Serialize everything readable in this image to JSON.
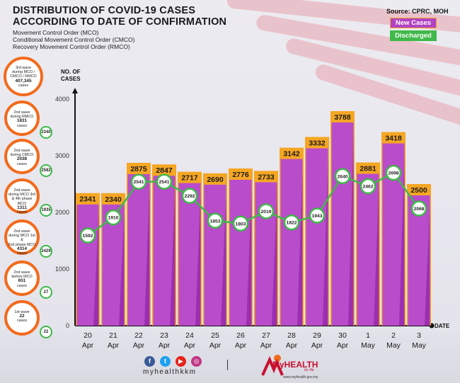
{
  "header": {
    "title": "DISTRIBUTION OF COVID-19 CASES ACCORDING TO DATE OF CONFIRMATION",
    "subtitle_lines": [
      "Movement Control Order (MCO)",
      "Conditional Movement Control Order (CMCO)",
      "Recovery Movement Control Order (RMCO)"
    ],
    "source": "Source: CPRC, MOH"
  },
  "legend": {
    "new_cases": "New Cases",
    "discharged": "Discharged",
    "new_color": "#b143c3",
    "discharged_color": "#3fb94a",
    "accent_color": "#f5a623"
  },
  "waves": [
    {
      "top": "3rd wave",
      "lines": [
        "during MCO /",
        "CMCO / RMCO"
      ],
      "count": "407,345",
      "suffix": "cases",
      "badge": ""
    },
    {
      "top": "2nd wave",
      "lines": [
        "during RMCO"
      ],
      "count": "1831",
      "suffix": "cases",
      "badge": "2340"
    },
    {
      "top": "2nd wave",
      "lines": [
        "during CMCO"
      ],
      "count": "2038",
      "suffix": "cases",
      "badge": "2582"
    },
    {
      "top": "2nd wave",
      "lines": [
        "during MCO 3rd",
        "& 4th phase MCO"
      ],
      "count": "1311",
      "suffix": "cases",
      "badge": "1935"
    },
    {
      "top": "2nd wave",
      "lines": [
        "during MCO 1st &",
        "2nd phase MCO"
      ],
      "count": "4314",
      "suffix": "cases",
      "badge": "2429"
    },
    {
      "top": "2nd wave",
      "lines": [
        "before MCO"
      ],
      "count": "651",
      "suffix": "cases",
      "badge": "27"
    },
    {
      "top": "1st wave",
      "lines": [],
      "count": "22",
      "suffix": "cases",
      "badge": "22"
    }
  ],
  "chart_data": {
    "type": "bar",
    "title": "DISTRIBUTION OF COVID-19 CASES ACCORDING TO DATE OF CONFIRMATION",
    "ylabel": "NO. OF CASES",
    "xlabel": "DATE",
    "ylim": [
      0,
      4000
    ],
    "yticks": [
      0,
      1000,
      2000,
      3000,
      4000
    ],
    "categories": [
      [
        "20",
        "Apr"
      ],
      [
        "21",
        "Apr"
      ],
      [
        "22",
        "Apr"
      ],
      [
        "23",
        "Apr"
      ],
      [
        "24",
        "Apr"
      ],
      [
        "25",
        "Apr"
      ],
      [
        "26",
        "Apr"
      ],
      [
        "27",
        "Apr"
      ],
      [
        "28",
        "Apr"
      ],
      [
        "29",
        "Apr"
      ],
      [
        "30",
        "Apr"
      ],
      [
        "1",
        "May"
      ],
      [
        "2",
        "May"
      ],
      [
        "3",
        "May"
      ]
    ],
    "series": [
      {
        "name": "New Cases",
        "type": "bar",
        "values": [
          2341,
          2340,
          2875,
          2847,
          2717,
          2690,
          2776,
          2733,
          3142,
          3332,
          3788,
          2881,
          3418,
          2500
        ]
      },
      {
        "name": "Discharged",
        "type": "line",
        "values": [
          1592,
          1910,
          2541,
          2541,
          2292,
          1853,
          1803,
          2019,
          1822,
          1943,
          2640,
          2462,
          2698,
          2068
        ]
      }
    ]
  },
  "footer": {
    "handle": "myhealthkkm",
    "social_icons": [
      "facebook-icon",
      "twitter-icon",
      "youtube-icon",
      "instagram-icon"
    ],
    "brand": "MyHEALTH",
    "brand_tag": "for life",
    "brand_url": "www.myhealth.gov.my"
  }
}
